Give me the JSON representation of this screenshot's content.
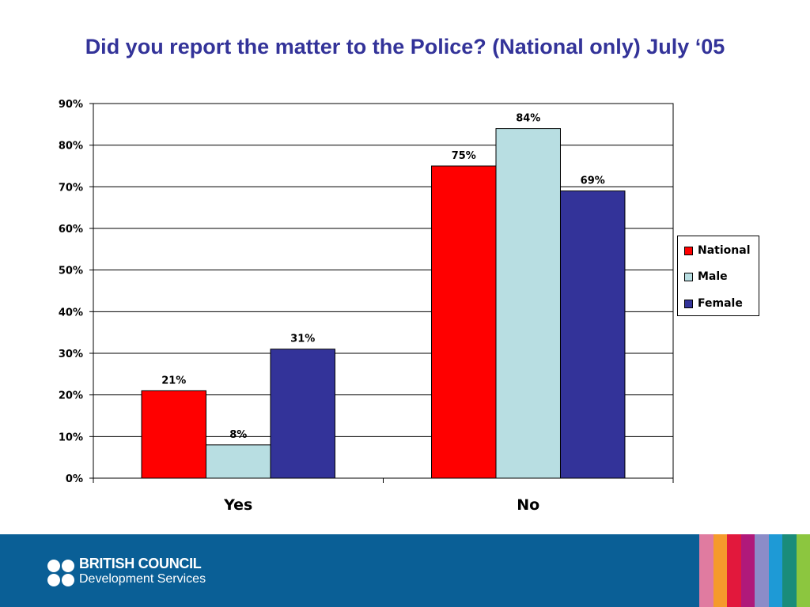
{
  "chart_data": {
    "type": "bar",
    "title": "Did you report the matter to the Police? (National only) July ‘05",
    "categories": [
      "Yes",
      "No"
    ],
    "series": [
      {
        "name": "National",
        "color": "#ff0000",
        "values": [
          21,
          75
        ]
      },
      {
        "name": "Male",
        "color": "#b8dee2",
        "values": [
          8,
          84
        ]
      },
      {
        "name": "Female",
        "color": "#333399",
        "values": [
          31,
          69
        ]
      }
    ],
    "value_labels": [
      [
        "21%",
        "8%",
        "31%"
      ],
      [
        "75%",
        "84%",
        "69%"
      ]
    ],
    "ylim": [
      0,
      90
    ],
    "yticks": [
      "0%",
      "10%",
      "20%",
      "30%",
      "40%",
      "50%",
      "60%",
      "70%",
      "80%",
      "90%"
    ],
    "grid": true,
    "legend_position": "right"
  },
  "footer": {
    "org_line1": "BRITISH COUNCIL",
    "org_line2": "Development Services",
    "background": "#0a5f96",
    "stripe_colors": [
      "#e07ba0",
      "#f59a2c",
      "#e2183c",
      "#b0197a",
      "#8c8cc8",
      "#1e9ad6",
      "#1a8c7a",
      "#8cc63f"
    ]
  }
}
